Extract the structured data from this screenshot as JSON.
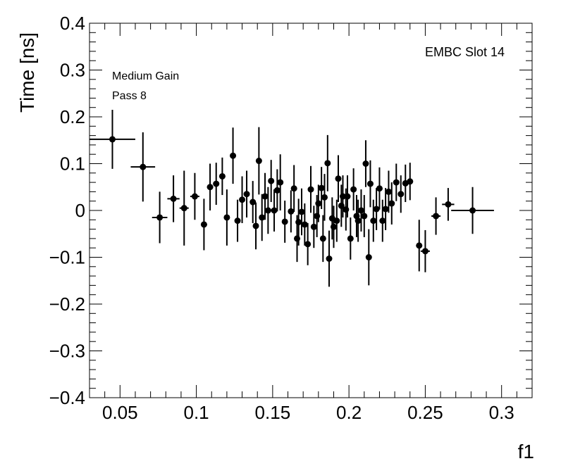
{
  "chart_data": {
    "type": "scatter",
    "xlabel": "f1",
    "ylabel": "Time [ns]",
    "xlim": [
      0.03,
      0.32
    ],
    "ylim": [
      -0.4,
      0.4
    ],
    "x_ticks": [
      0.05,
      0.1,
      0.15,
      0.2,
      0.25,
      0.3
    ],
    "x_tick_labels": [
      "0.05",
      "0.1",
      "0.15",
      "0.2",
      "0.25",
      "0.3"
    ],
    "y_ticks": [
      -0.4,
      -0.3,
      -0.2,
      -0.1,
      0,
      0.1,
      0.2,
      0.3,
      0.4
    ],
    "y_tick_labels": [
      "−0.4",
      "−0.3",
      "−0.2",
      "−0.1",
      "0",
      "0.1",
      "0.2",
      "0.3",
      "0.4"
    ],
    "annotations": [
      "EMBC Slot 14",
      "Medium Gain",
      "Pass 8"
    ],
    "grid": false,
    "points": [
      {
        "x": 0.045,
        "y": 0.152,
        "xerr": 0.015,
        "yerr": 0.063
      },
      {
        "x": 0.065,
        "y": 0.093,
        "xerr": 0.008,
        "yerr": 0.074
      },
      {
        "x": 0.076,
        "y": -0.015,
        "xerr": 0.005,
        "yerr": 0.055
      },
      {
        "x": 0.085,
        "y": 0.025,
        "xerr": 0.004,
        "yerr": 0.05
      },
      {
        "x": 0.092,
        "y": 0.005,
        "xerr": 0.003,
        "yerr": 0.08
      },
      {
        "x": 0.099,
        "y": 0.03,
        "xerr": 0.003,
        "yerr": 0.05
      },
      {
        "x": 0.105,
        "y": -0.03,
        "xerr": 0.002,
        "yerr": 0.055
      },
      {
        "x": 0.109,
        "y": 0.05,
        "xerr": 0.002,
        "yerr": 0.05
      },
      {
        "x": 0.113,
        "y": 0.057,
        "xerr": 0.002,
        "yerr": 0.045
      },
      {
        "x": 0.117,
        "y": 0.073,
        "xerr": 0.002,
        "yerr": 0.04
      },
      {
        "x": 0.12,
        "y": -0.015,
        "xerr": 0.001,
        "yerr": 0.06
      },
      {
        "x": 0.124,
        "y": 0.117,
        "xerr": 0.001,
        "yerr": 0.06
      },
      {
        "x": 0.127,
        "y": -0.022,
        "xerr": 0.001,
        "yerr": 0.045
      },
      {
        "x": 0.13,
        "y": 0.023,
        "xerr": 0.001,
        "yerr": 0.05
      },
      {
        "x": 0.133,
        "y": 0.035,
        "xerr": 0.001,
        "yerr": 0.05
      },
      {
        "x": 0.137,
        "y": 0.018,
        "xerr": 0.001,
        "yerr": 0.045
      },
      {
        "x": 0.139,
        "y": -0.033,
        "xerr": 0.001,
        "yerr": 0.05
      },
      {
        "x": 0.141,
        "y": 0.106,
        "xerr": 0.001,
        "yerr": 0.072
      },
      {
        "x": 0.143,
        "y": -0.015,
        "xerr": 0.001,
        "yerr": 0.05
      },
      {
        "x": 0.145,
        "y": 0.03,
        "xerr": 0.001,
        "yerr": 0.05
      },
      {
        "x": 0.147,
        "y": 0.0,
        "xerr": 0.001,
        "yerr": 0.05
      },
      {
        "x": 0.149,
        "y": 0.063,
        "xerr": 0.001,
        "yerr": 0.045
      },
      {
        "x": 0.151,
        "y": 0.0,
        "xerr": 0.001,
        "yerr": 0.045
      },
      {
        "x": 0.153,
        "y": 0.043,
        "xerr": 0.001,
        "yerr": 0.045
      },
      {
        "x": 0.155,
        "y": 0.06,
        "xerr": 0.001,
        "yerr": 0.06
      },
      {
        "x": 0.158,
        "y": -0.024,
        "xerr": 0.001,
        "yerr": 0.045
      },
      {
        "x": 0.162,
        "y": -0.002,
        "xerr": 0.001,
        "yerr": 0.045
      },
      {
        "x": 0.164,
        "y": 0.047,
        "xerr": 0.001,
        "yerr": 0.05
      },
      {
        "x": 0.166,
        "y": -0.06,
        "xerr": 0.001,
        "yerr": 0.05
      },
      {
        "x": 0.167,
        "y": -0.025,
        "xerr": 0.001,
        "yerr": 0.05
      },
      {
        "x": 0.169,
        "y": -0.003,
        "xerr": 0.001,
        "yerr": 0.05
      },
      {
        "x": 0.171,
        "y": -0.03,
        "xerr": 0.001,
        "yerr": 0.045
      },
      {
        "x": 0.173,
        "y": -0.072,
        "xerr": 0.001,
        "yerr": 0.045
      },
      {
        "x": 0.175,
        "y": 0.045,
        "xerr": 0.001,
        "yerr": 0.05
      },
      {
        "x": 0.177,
        "y": -0.035,
        "xerr": 0.001,
        "yerr": 0.045
      },
      {
        "x": 0.179,
        "y": -0.012,
        "xerr": 0.001,
        "yerr": 0.045
      },
      {
        "x": 0.18,
        "y": 0.015,
        "xerr": 0.001,
        "yerr": 0.04
      },
      {
        "x": 0.182,
        "y": 0.048,
        "xerr": 0.001,
        "yerr": 0.045
      },
      {
        "x": 0.183,
        "y": -0.06,
        "xerr": 0.001,
        "yerr": 0.05
      },
      {
        "x": 0.184,
        "y": 0.028,
        "xerr": 0.001,
        "yerr": 0.05
      },
      {
        "x": 0.186,
        "y": 0.101,
        "xerr": 0.001,
        "yerr": 0.06
      },
      {
        "x": 0.187,
        "y": -0.103,
        "xerr": 0.001,
        "yerr": 0.06
      },
      {
        "x": 0.189,
        "y": -0.017,
        "xerr": 0.001,
        "yerr": 0.045
      },
      {
        "x": 0.19,
        "y": -0.035,
        "xerr": 0.001,
        "yerr": 0.045
      },
      {
        "x": 0.192,
        "y": -0.022,
        "xerr": 0.001,
        "yerr": 0.045
      },
      {
        "x": 0.193,
        "y": 0.068,
        "xerr": 0.001,
        "yerr": 0.05
      },
      {
        "x": 0.195,
        "y": 0.01,
        "xerr": 0.001,
        "yerr": 0.045
      },
      {
        "x": 0.196,
        "y": 0.03,
        "xerr": 0.001,
        "yerr": 0.045
      },
      {
        "x": 0.198,
        "y": 0.002,
        "xerr": 0.001,
        "yerr": 0.045
      },
      {
        "x": 0.199,
        "y": 0.03,
        "xerr": 0.001,
        "yerr": 0.045
      },
      {
        "x": 0.201,
        "y": -0.06,
        "xerr": 0.001,
        "yerr": 0.045
      },
      {
        "x": 0.203,
        "y": 0.045,
        "xerr": 0.001,
        "yerr": 0.045
      },
      {
        "x": 0.205,
        "y": -0.012,
        "xerr": 0.001,
        "yerr": 0.045
      },
      {
        "x": 0.206,
        "y": -0.022,
        "xerr": 0.001,
        "yerr": 0.045
      },
      {
        "x": 0.208,
        "y": 0.0,
        "xerr": 0.001,
        "yerr": 0.045
      },
      {
        "x": 0.21,
        "y": -0.012,
        "xerr": 0.001,
        "yerr": 0.045
      },
      {
        "x": 0.211,
        "y": 0.1,
        "xerr": 0.001,
        "yerr": 0.05
      },
      {
        "x": 0.213,
        "y": -0.1,
        "xerr": 0.001,
        "yerr": 0.06
      },
      {
        "x": 0.214,
        "y": 0.057,
        "xerr": 0.001,
        "yerr": 0.05
      },
      {
        "x": 0.216,
        "y": -0.022,
        "xerr": 0.001,
        "yerr": 0.045
      },
      {
        "x": 0.218,
        "y": 0.003,
        "xerr": 0.001,
        "yerr": 0.045
      },
      {
        "x": 0.22,
        "y": 0.047,
        "xerr": 0.001,
        "yerr": 0.045
      },
      {
        "x": 0.222,
        "y": -0.022,
        "xerr": 0.001,
        "yerr": 0.045
      },
      {
        "x": 0.224,
        "y": 0.003,
        "xerr": 0.001,
        "yerr": 0.045
      },
      {
        "x": 0.226,
        "y": 0.04,
        "xerr": 0.001,
        "yerr": 0.045
      },
      {
        "x": 0.228,
        "y": 0.015,
        "xerr": 0.001,
        "yerr": 0.045
      },
      {
        "x": 0.231,
        "y": 0.06,
        "xerr": 0.001,
        "yerr": 0.04
      },
      {
        "x": 0.234,
        "y": 0.035,
        "xerr": 0.001,
        "yerr": 0.04
      },
      {
        "x": 0.237,
        "y": 0.058,
        "xerr": 0.001,
        "yerr": 0.04
      },
      {
        "x": 0.24,
        "y": 0.062,
        "xerr": 0.002,
        "yerr": 0.04
      },
      {
        "x": 0.246,
        "y": -0.075,
        "xerr": 0.002,
        "yerr": 0.055
      },
      {
        "x": 0.25,
        "y": -0.087,
        "xerr": 0.003,
        "yerr": 0.045
      },
      {
        "x": 0.257,
        "y": -0.012,
        "xerr": 0.003,
        "yerr": 0.04
      },
      {
        "x": 0.265,
        "y": 0.013,
        "xerr": 0.004,
        "yerr": 0.035
      },
      {
        "x": 0.281,
        "y": 0.0,
        "xerr": 0.014,
        "yerr": 0.05
      }
    ]
  }
}
